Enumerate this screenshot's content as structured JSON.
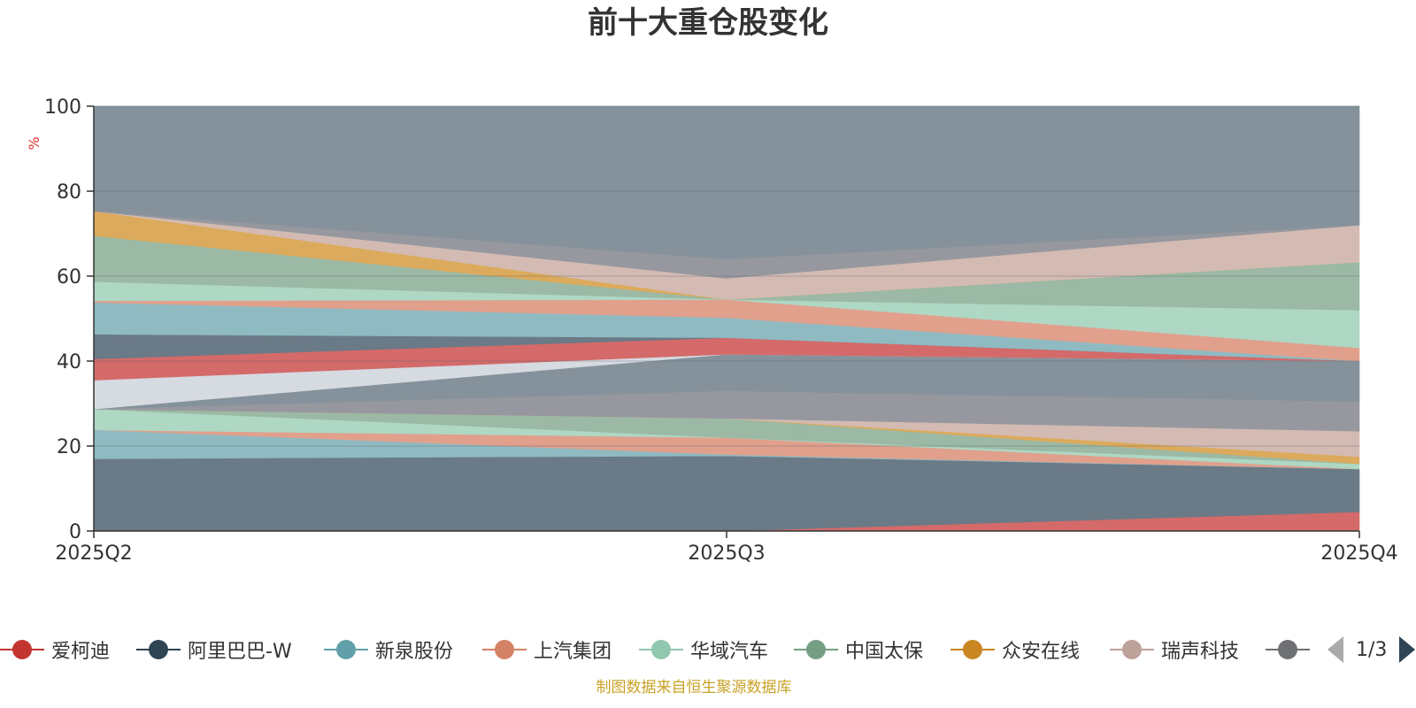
{
  "chart_data": {
    "type": "area",
    "subtype": "stacked-percent",
    "title": "前十大重仓股变化",
    "ylabel": "%",
    "ylim": [
      0,
      100
    ],
    "yticks": [
      0,
      20,
      40,
      60,
      80,
      100
    ],
    "categories": [
      "2025Q2",
      "2025Q3",
      "2025Q4"
    ],
    "bands": [
      {
        "name": "爱柯迪",
        "color": "#d46a6a",
        "lower": [
          0,
          0,
          0
        ],
        "upper": [
          0,
          0,
          4.5
        ]
      },
      {
        "name": "阿里巴巴-W",
        "color": "#6a7a86",
        "lower": [
          0,
          0,
          4.5
        ],
        "upper": [
          17,
          17.7,
          14.6
        ]
      },
      {
        "name": "新泉股份",
        "color": "#8fbac2",
        "lower": [
          17,
          17.7,
          14.6
        ],
        "upper": [
          23.8,
          18,
          14.6
        ]
      },
      {
        "name": "上汽集团",
        "color": "#e0a08c",
        "lower": [
          23.8,
          18,
          14.6
        ],
        "upper": [
          23.8,
          22,
          14.6
        ]
      },
      {
        "name": "华域汽车",
        "color": "#aed7c4",
        "lower": [
          23.8,
          22,
          14.6
        ],
        "upper": [
          28.7,
          22,
          15.8
        ]
      },
      {
        "name": "中国太保",
        "color": "#9bb9a4",
        "lower": [
          28.7,
          22,
          15.8
        ],
        "upper": [
          28.7,
          26.5,
          15.8
        ]
      },
      {
        "name": "众安在线",
        "color": "#dcaa5c",
        "lower": [
          28.7,
          26.5,
          15.8
        ],
        "upper": [
          28.7,
          26.5,
          17.5
        ]
      },
      {
        "name": "瑞声科技",
        "color": "#d3bbb3",
        "lower": [
          28.7,
          26.5,
          17.5
        ],
        "upper": [
          28.7,
          26.5,
          23.5
        ]
      },
      {
        "name": "",
        "color": "#97989f",
        "lower": [
          28.7,
          26.5,
          23.5
        ],
        "upper": [
          28.7,
          33,
          30.5
        ]
      },
      {
        "name": "",
        "color": "#85929b",
        "lower": [
          28.7,
          33,
          30.5
        ],
        "upper": [
          28.7,
          41.6,
          40
        ]
      },
      {
        "name": "",
        "color": "#d6dae1",
        "lower": [
          28.7,
          41.6,
          40
        ],
        "upper": [
          35.5,
          41.6,
          40
        ]
      },
      {
        "name": "爱柯迪",
        "color": "#d46a6a",
        "lower": [
          35.5,
          41.6,
          40
        ],
        "upper": [
          40.5,
          45.5,
          40
        ]
      },
      {
        "name": "阿里巴巴-W",
        "color": "#6a7a86",
        "lower": [
          40.5,
          45.5,
          40
        ],
        "upper": [
          46.3,
          45.5,
          40
        ]
      },
      {
        "name": "新泉股份",
        "color": "#8fbac2",
        "lower": [
          46.3,
          45.5,
          40
        ],
        "upper": [
          53.8,
          50.2,
          40
        ]
      },
      {
        "name": "上汽集团",
        "color": "#e0a08c",
        "lower": [
          53.8,
          50.2,
          40
        ],
        "upper": [
          54.2,
          54.5,
          43.1
        ]
      },
      {
        "name": "华域汽车",
        "color": "#aed7c4",
        "lower": [
          54.2,
          54.5,
          43.1
        ],
        "upper": [
          58.7,
          54.5,
          52
        ]
      },
      {
        "name": "中国太保",
        "color": "#9bb9a4",
        "lower": [
          58.7,
          54.5,
          52
        ],
        "upper": [
          69.5,
          54.5,
          63.3
        ]
      },
      {
        "name": "众安在线",
        "color": "#dcaa5c",
        "lower": [
          69.5,
          54.5,
          63.3
        ],
        "upper": [
          75.3,
          54.5,
          63.3
        ]
      },
      {
        "name": "瑞声科技",
        "color": "#d3bbb3",
        "lower": [
          75.3,
          54.5,
          63.3
        ],
        "upper": [
          75.3,
          59.5,
          72
        ]
      },
      {
        "name": "",
        "color": "#97989f",
        "lower": [
          75.3,
          59.5,
          72
        ],
        "upper": [
          75.3,
          64,
          72
        ]
      },
      {
        "name": "",
        "color": "#85929b",
        "lower": [
          75.3,
          64,
          72
        ],
        "upper": [
          100,
          100,
          100
        ]
      }
    ]
  },
  "legend": {
    "items": [
      {
        "label": "爱柯迪",
        "color": "#c23531"
      },
      {
        "label": "阿里巴巴-W",
        "color": "#2f4554"
      },
      {
        "label": "新泉股份",
        "color": "#61a0a8"
      },
      {
        "label": "上汽集团",
        "color": "#d48265"
      },
      {
        "label": "华域汽车",
        "color": "#91c7ae"
      },
      {
        "label": "中国太保",
        "color": "#749f83"
      },
      {
        "label": "众安在线",
        "color": "#ca8622"
      },
      {
        "label": "瑞声科技",
        "color": "#bda29a"
      },
      {
        "label": "",
        "color": "#6e7074"
      }
    ],
    "page": "1/3"
  },
  "source_note": "制图数据来自恒生聚源数据库"
}
